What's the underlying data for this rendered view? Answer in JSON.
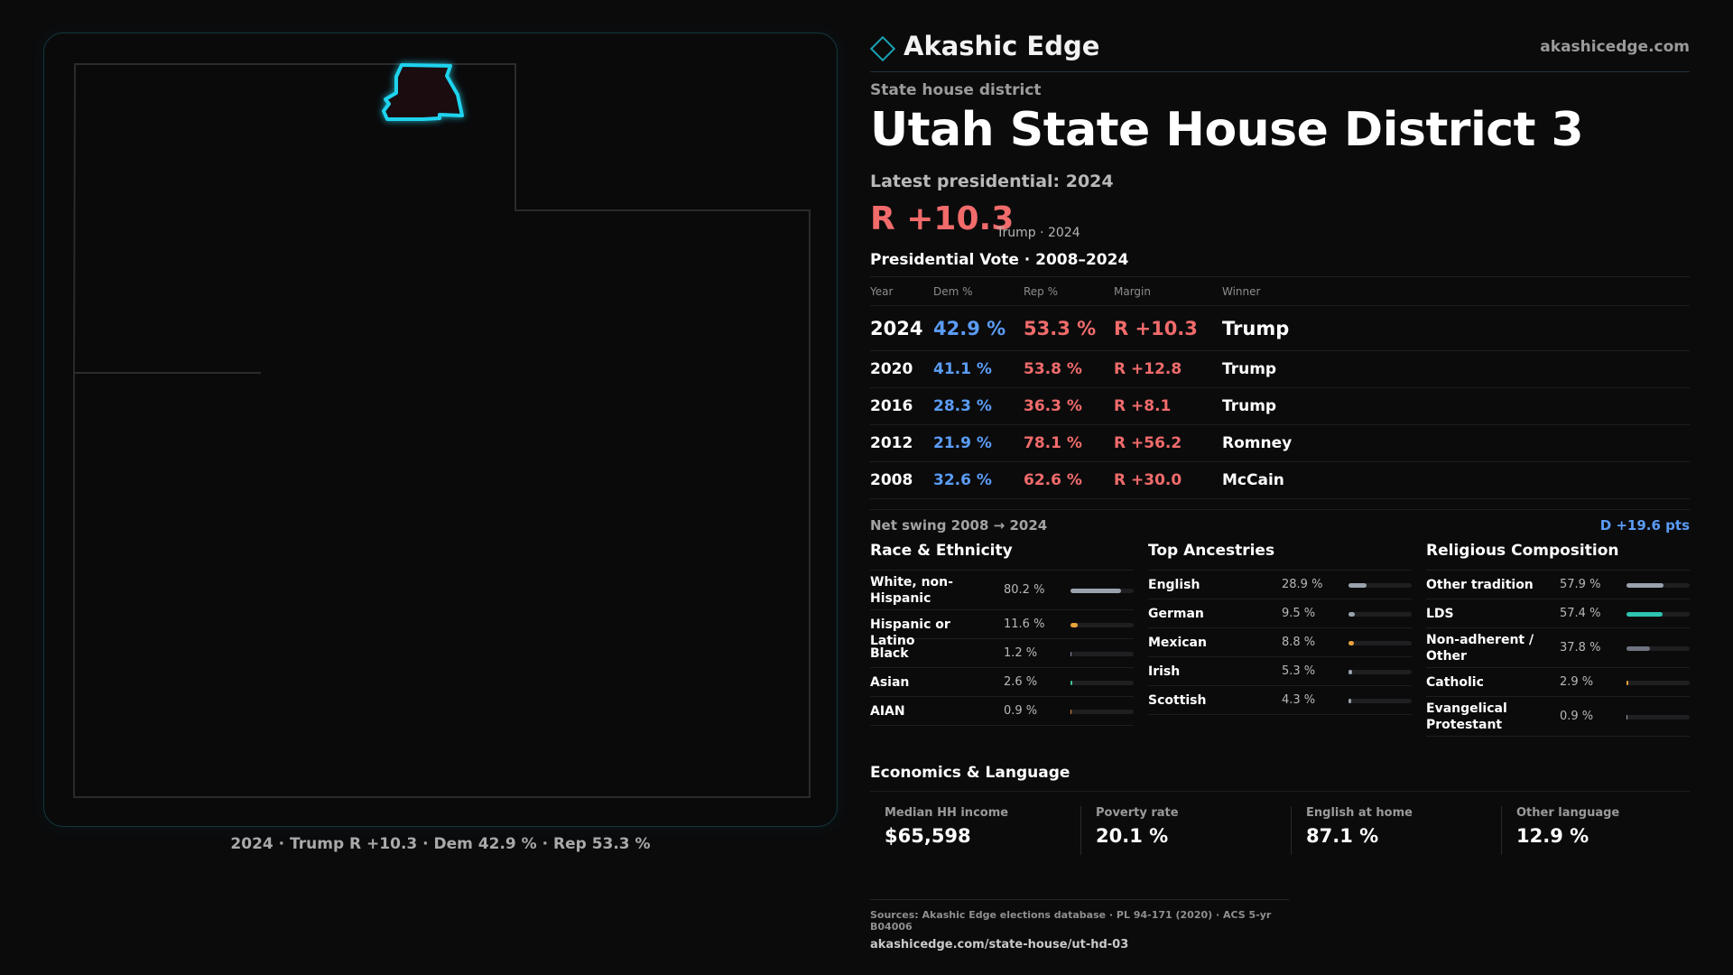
{
  "map": {
    "caption": "2024 · Trump R +10.3 · Dem 42.9 % · Rep 53.3 %"
  },
  "brand": {
    "name": "Akashic Edge",
    "url": "akashicedge.com"
  },
  "header": {
    "kicker": "State house district",
    "title": "Utah State House District 3",
    "latest": "Latest presidential: 2024",
    "margin": "R +10.3",
    "margin_note": "Trump · 2024"
  },
  "presidential": {
    "title": "Presidential Vote · 2008–2024",
    "columns": [
      "Year",
      "Dem %",
      "Rep %",
      "Margin",
      "Winner"
    ],
    "rows": [
      {
        "year": "2024",
        "dem": "42.9 %",
        "rep": "53.3 %",
        "margin": "R +10.3",
        "winner": "Trump"
      },
      {
        "year": "2020",
        "dem": "41.1 %",
        "rep": "53.8 %",
        "margin": "R +12.8",
        "winner": "Trump"
      },
      {
        "year": "2016",
        "dem": "28.3 %",
        "rep": "36.3 %",
        "margin": "R +8.1",
        "winner": "Trump"
      },
      {
        "year": "2012",
        "dem": "21.9 %",
        "rep": "78.1 %",
        "margin": "R +56.2",
        "winner": "Romney"
      },
      {
        "year": "2008",
        "dem": "32.6 %",
        "rep": "62.6 %",
        "margin": "R +30.0",
        "winner": "McCain"
      }
    ],
    "swing_label": "Net swing 2008 → 2024",
    "swing_value": "D +19.6 pts"
  },
  "race": {
    "title": "Race & Ethnicity",
    "items": [
      {
        "label": "White, non-Hispanic",
        "value": "80.2 %",
        "pct": 80.2,
        "color": "#9aa3ad"
      },
      {
        "label": "Hispanic or Latino",
        "value": "11.6 %",
        "pct": 11.6,
        "color": "#e8a33c"
      },
      {
        "label": "Black",
        "value": "1.2 %",
        "pct": 1.2,
        "color": "#8a8fa0"
      },
      {
        "label": "Asian",
        "value": "2.6 %",
        "pct": 2.6,
        "color": "#3ec49a"
      },
      {
        "label": "AIAN",
        "value": "0.9 %",
        "pct": 0.9,
        "color": "#d98a3a"
      }
    ]
  },
  "ancestry": {
    "title": "Top Ancestries",
    "items": [
      {
        "label": "English",
        "value": "28.9 %",
        "pct": 28.9,
        "color": "#9aa3ad"
      },
      {
        "label": "German",
        "value": "9.5 %",
        "pct": 9.5,
        "color": "#9aa3ad"
      },
      {
        "label": "Mexican",
        "value": "8.8 %",
        "pct": 8.8,
        "color": "#e8a33c"
      },
      {
        "label": "Irish",
        "value": "5.3 %",
        "pct": 5.3,
        "color": "#9aa3ad"
      },
      {
        "label": "Scottish",
        "value": "4.3 %",
        "pct": 4.3,
        "color": "#9aa3ad"
      }
    ]
  },
  "religion": {
    "title": "Religious Composition",
    "items": [
      {
        "label": "Other tradition",
        "value": "57.9 %",
        "pct": 57.9,
        "color": "#9aa3ad"
      },
      {
        "label": "LDS",
        "value": "57.4 %",
        "pct": 57.4,
        "color": "#2ec4b0"
      },
      {
        "label": "Non-adherent / Other",
        "value": "37.8 %",
        "pct": 37.8,
        "color": "#6f7480"
      },
      {
        "label": "Catholic",
        "value": "2.9 %",
        "pct": 2.9,
        "color": "#e8a33c"
      },
      {
        "label": "Evangelical Protestant",
        "value": "0.9 %",
        "pct": 0.9,
        "color": "#9aa3ad"
      }
    ]
  },
  "economics": {
    "title": "Economics & Language",
    "items": [
      {
        "label": "Median HH income",
        "value": "$65,598"
      },
      {
        "label": "Poverty rate",
        "value": "20.1 %"
      },
      {
        "label": "English at home",
        "value": "87.1 %"
      },
      {
        "label": "Other language",
        "value": "12.9 %"
      }
    ]
  },
  "sources": {
    "line": "Sources: Akashic Edge elections database · PL 94-171 (2020) · ACS 5-yr B04006",
    "url": "akashicedge.com/state-house/ut-hd-03"
  }
}
